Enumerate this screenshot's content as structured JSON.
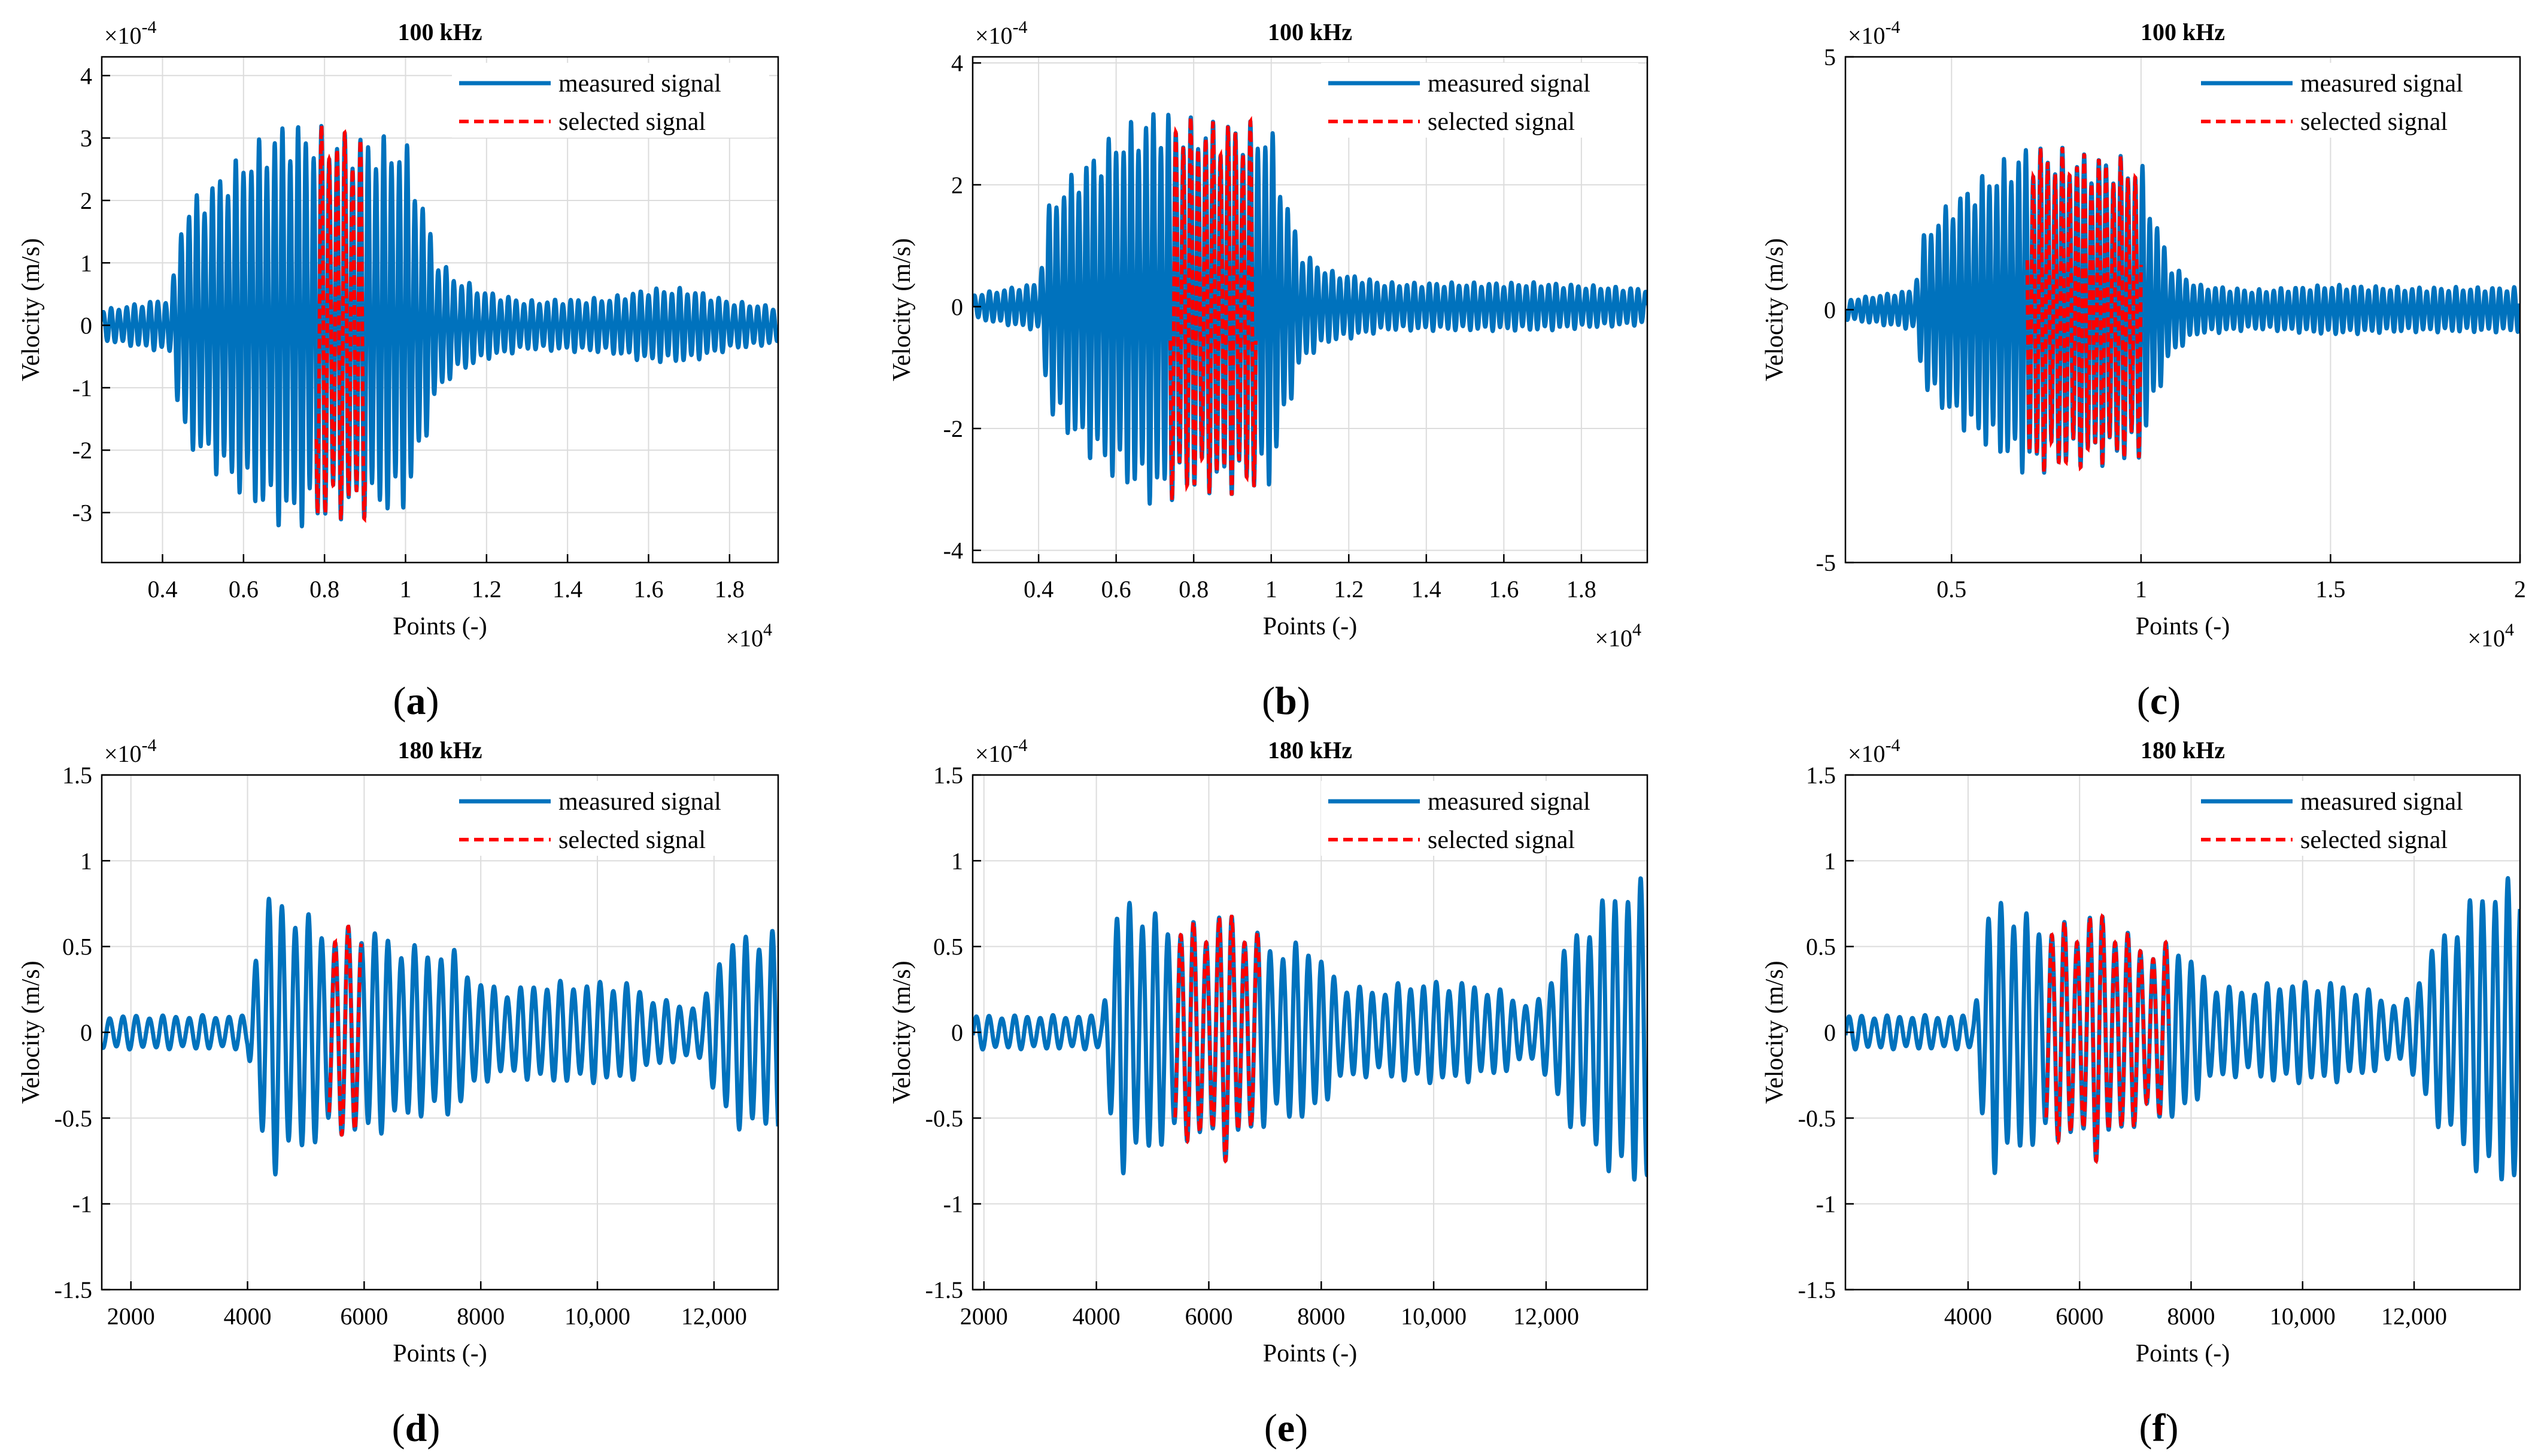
{
  "figure": {
    "legend_measured": "measured signal",
    "legend_selected": "selected signal"
  },
  "colors": {
    "measured": "#0072BD",
    "selected": "#FF0000",
    "grid": "#dcdcdc",
    "axis": "#000000"
  },
  "chart_data": [
    {
      "id": "a",
      "type": "line",
      "panel_label": "(a)",
      "title": "100 kHz",
      "xlabel": "Points (-)",
      "ylabel": "Velocity (m/s)",
      "x_exponent": "×10^4",
      "y_exponent": "×10^-4",
      "xlim": [
        0.25,
        1.92
      ],
      "ylim": [
        -3.8,
        4.3
      ],
      "xticks": [
        0.4,
        0.6,
        0.8,
        1.0,
        1.2,
        1.4,
        1.6,
        1.8
      ],
      "xticklabels": [
        "0.4",
        "0.6",
        "0.8",
        "1",
        "1.2",
        "1.4",
        "1.6",
        "1.8"
      ],
      "yticks": [
        -3,
        -2,
        -1,
        0,
        1,
        2,
        3,
        4
      ],
      "yticklabels": [
        "-3",
        "-2",
        "-1",
        "0",
        "1",
        "2",
        "3",
        "4"
      ],
      "grid": true,
      "legend": "top-right",
      "series": [
        {
          "name": "measured signal",
          "kind": "oscillation",
          "cycles_per_unit": 52,
          "envelope": [
            [
              0.25,
              0.25
            ],
            [
              0.42,
              0.45
            ],
            [
              0.45,
              1.9
            ],
            [
              0.5,
              2.2
            ],
            [
              0.6,
              2.8
            ],
            [
              0.7,
              3.3
            ],
            [
              0.8,
              3.2
            ],
            [
              0.9,
              3.1
            ],
            [
              1.0,
              3.0
            ],
            [
              1.03,
              2.3
            ],
            [
              1.08,
              1.1
            ],
            [
              1.12,
              0.8
            ],
            [
              1.2,
              0.55
            ],
            [
              1.3,
              0.4
            ],
            [
              1.5,
              0.45
            ],
            [
              1.6,
              0.6
            ],
            [
              1.7,
              0.6
            ],
            [
              1.8,
              0.4
            ],
            [
              1.92,
              0.3
            ]
          ]
        },
        {
          "name": "selected signal",
          "kind": "oscillation",
          "cycles_per_unit": 52,
          "range": [
            0.78,
            0.9
          ],
          "envelope": [
            [
              0.78,
              3.1
            ],
            [
              0.9,
              3.0
            ]
          ]
        }
      ]
    },
    {
      "id": "b",
      "type": "line",
      "panel_label": "(b)",
      "title": "100 kHz",
      "xlabel": "Points (-)",
      "ylabel": "Velocity (m/s)",
      "x_exponent": "×10^4",
      "y_exponent": "×10^-4",
      "xlim": [
        0.23,
        1.97
      ],
      "ylim": [
        -4.2,
        4.1
      ],
      "xticks": [
        0.4,
        0.6,
        0.8,
        1.0,
        1.2,
        1.4,
        1.6,
        1.8
      ],
      "xticklabels": [
        "0.4",
        "0.6",
        "0.8",
        "1",
        "1.2",
        "1.4",
        "1.6",
        "1.8"
      ],
      "yticks": [
        -4,
        -2,
        0,
        2,
        4
      ],
      "yticklabels": [
        "-4",
        "-2",
        "0",
        "2",
        "4"
      ],
      "grid": true,
      "legend": "top-right",
      "series": [
        {
          "name": "measured signal",
          "kind": "oscillation",
          "cycles_per_unit": 52,
          "envelope": [
            [
              0.23,
              0.2
            ],
            [
              0.4,
              0.4
            ],
            [
              0.43,
              1.8
            ],
            [
              0.5,
              2.3
            ],
            [
              0.6,
              2.9
            ],
            [
              0.7,
              3.3
            ],
            [
              0.8,
              3.1
            ],
            [
              0.9,
              3.1
            ],
            [
              1.0,
              3.0
            ],
            [
              1.03,
              2.0
            ],
            [
              1.08,
              0.9
            ],
            [
              1.15,
              0.6
            ],
            [
              1.3,
              0.4
            ],
            [
              1.5,
              0.4
            ],
            [
              1.7,
              0.4
            ],
            [
              1.97,
              0.3
            ]
          ]
        },
        {
          "name": "selected signal",
          "kind": "oscillation",
          "cycles_per_unit": 52,
          "range": [
            0.74,
            0.96
          ],
          "envelope": [
            [
              0.74,
              3.1
            ],
            [
              0.96,
              3.0
            ]
          ]
        }
      ]
    },
    {
      "id": "c",
      "type": "line",
      "panel_label": "(c)",
      "title": "100 kHz",
      "xlabel": "Points (-)",
      "ylabel": "Velocity (m/s)",
      "x_exponent": "×10^4",
      "y_exponent": "×10^-4",
      "xlim": [
        0.22,
        2.0
      ],
      "ylim": [
        -5,
        5
      ],
      "xticks": [
        0.5,
        1.0,
        1.5,
        2.0
      ],
      "xticklabels": [
        "0.5",
        "1",
        "1.5",
        "2"
      ],
      "yticks": [
        -5,
        0,
        5
      ],
      "yticklabels": [
        "-5",
        "0",
        "5"
      ],
      "grid": true,
      "legend": "top-right",
      "series": [
        {
          "name": "measured signal",
          "kind": "oscillation",
          "cycles_per_unit": 52,
          "envelope": [
            [
              0.22,
              0.2
            ],
            [
              0.4,
              0.4
            ],
            [
              0.43,
              1.6
            ],
            [
              0.5,
              2.2
            ],
            [
              0.6,
              2.8
            ],
            [
              0.7,
              3.3
            ],
            [
              0.8,
              3.2
            ],
            [
              0.9,
              3.1
            ],
            [
              1.0,
              3.0
            ],
            [
              1.03,
              2.0
            ],
            [
              1.08,
              0.9
            ],
            [
              1.15,
              0.5
            ],
            [
              1.3,
              0.4
            ],
            [
              1.5,
              0.5
            ],
            [
              1.7,
              0.45
            ],
            [
              1.9,
              0.45
            ],
            [
              2.0,
              0.45
            ]
          ]
        },
        {
          "name": "selected signal",
          "kind": "oscillation",
          "cycles_per_unit": 52,
          "range": [
            0.7,
            1.0
          ],
          "envelope": [
            [
              0.7,
              3.2
            ],
            [
              1.0,
              3.0
            ]
          ]
        }
      ]
    },
    {
      "id": "d",
      "type": "line",
      "panel_label": "(d)",
      "title": "180 kHz",
      "xlabel": "Points (-)",
      "ylabel": "Velocity (m/s)",
      "x_exponent": "",
      "y_exponent": "×10^-4",
      "xlim": [
        1500,
        13100
      ],
      "ylim": [
        -1.5,
        1.5
      ],
      "xticks": [
        2000,
        4000,
        6000,
        8000,
        10000,
        12000
      ],
      "xticklabels": [
        "2000",
        "4000",
        "6000",
        "8000",
        "10,000",
        "12,000"
      ],
      "yticks": [
        -1.5,
        -1.0,
        -0.5,
        0,
        0.5,
        1.0,
        1.5
      ],
      "yticklabels": [
        "-1.5",
        "-1",
        "-0.5",
        "0",
        "0.5",
        "1",
        "1.5"
      ],
      "grid": true,
      "legend": "top-right",
      "series": [
        {
          "name": "measured signal",
          "kind": "oscillation",
          "cycles_per_unit": 0.0044,
          "envelope": [
            [
              1500,
              0.1
            ],
            [
              4000,
              0.1
            ],
            [
              4150,
              0.55
            ],
            [
              4400,
              0.85
            ],
            [
              4600,
              0.8
            ],
            [
              5000,
              0.7
            ],
            [
              5500,
              0.6
            ],
            [
              6000,
              0.65
            ],
            [
              6500,
              0.55
            ],
            [
              7000,
              0.5
            ],
            [
              7500,
              0.5
            ],
            [
              8000,
              0.3
            ],
            [
              8500,
              0.25
            ],
            [
              9000,
              0.3
            ],
            [
              9500,
              0.3
            ],
            [
              10000,
              0.3
            ],
            [
              10500,
              0.3
            ],
            [
              11000,
              0.2
            ],
            [
              11800,
              0.15
            ],
            [
              12100,
              0.5
            ],
            [
              12600,
              0.6
            ],
            [
              13100,
              0.6
            ]
          ]
        },
        {
          "name": "selected signal",
          "kind": "oscillation",
          "cycles_per_unit": 0.0044,
          "range": [
            5400,
            5950
          ],
          "envelope": [
            [
              5400,
              0.7
            ],
            [
              5950,
              0.6
            ]
          ]
        }
      ]
    },
    {
      "id": "e",
      "type": "line",
      "panel_label": "(e)",
      "title": "180 kHz",
      "xlabel": "Points (-)",
      "ylabel": "Velocity (m/s)",
      "x_exponent": "",
      "y_exponent": "×10^-4",
      "xlim": [
        1800,
        13800
      ],
      "ylim": [
        -1.5,
        1.5
      ],
      "xticks": [
        2000,
        4000,
        6000,
        8000,
        10000,
        12000
      ],
      "xticklabels": [
        "2000",
        "4000",
        "6000",
        "8000",
        "10,000",
        "12,000"
      ],
      "yticks": [
        -1.5,
        -1.0,
        -0.5,
        0,
        0.5,
        1.0,
        1.5
      ],
      "yticklabels": [
        "-1.5",
        "-1",
        "-0.5",
        "0",
        "0.5",
        "1",
        "1.5"
      ],
      "grid": true,
      "legend": "top-right",
      "series": [
        {
          "name": "measured signal",
          "kind": "oscillation",
          "cycles_per_unit": 0.0044,
          "envelope": [
            [
              1800,
              0.1
            ],
            [
              4100,
              0.1
            ],
            [
              4250,
              0.55
            ],
            [
              4500,
              0.85
            ],
            [
              5000,
              0.7
            ],
            [
              5500,
              0.65
            ],
            [
              6000,
              0.65
            ],
            [
              6300,
              0.75
            ],
            [
              6800,
              0.6
            ],
            [
              7300,
              0.5
            ],
            [
              7800,
              0.55
            ],
            [
              8300,
              0.3
            ],
            [
              9000,
              0.25
            ],
            [
              9500,
              0.3
            ],
            [
              10500,
              0.3
            ],
            [
              11200,
              0.25
            ],
            [
              11800,
              0.15
            ],
            [
              12300,
              0.5
            ],
            [
              12800,
              0.7
            ],
            [
              13300,
              0.9
            ],
            [
              13800,
              0.9
            ]
          ]
        },
        {
          "name": "selected signal",
          "kind": "oscillation",
          "cycles_per_unit": 0.0044,
          "range": [
            5400,
            6900
          ],
          "envelope": [
            [
              5400,
              0.7
            ],
            [
              6300,
              0.75
            ],
            [
              6900,
              0.6
            ]
          ]
        }
      ]
    },
    {
      "id": "f",
      "type": "line",
      "panel_label": "(f)",
      "title": "180 kHz",
      "xlabel": "Points (-)",
      "ylabel": "Velocity (m/s)",
      "x_exponent": "",
      "y_exponent": "×10^-4",
      "xlim": [
        1800,
        13900
      ],
      "ylim": [
        -1.5,
        1.5
      ],
      "xticks": [
        4000,
        6000,
        8000,
        10000,
        12000
      ],
      "xticklabels": [
        "4000",
        "6000",
        "8000",
        "10,000",
        "12,000"
      ],
      "yticks": [
        -1.5,
        -1.0,
        -0.5,
        0,
        0.5,
        1.0,
        1.5
      ],
      "yticklabels": [
        "-1.5",
        "-1",
        "-0.5",
        "0",
        "0.5",
        "1",
        "1.5"
      ],
      "grid": true,
      "legend": "top-right",
      "series": [
        {
          "name": "measured signal",
          "kind": "oscillation",
          "cycles_per_unit": 0.0044,
          "envelope": [
            [
              1800,
              0.1
            ],
            [
              4100,
              0.1
            ],
            [
              4250,
              0.55
            ],
            [
              4500,
              0.85
            ],
            [
              5000,
              0.7
            ],
            [
              5500,
              0.65
            ],
            [
              6000,
              0.65
            ],
            [
              6300,
              0.75
            ],
            [
              6800,
              0.6
            ],
            [
              7300,
              0.5
            ],
            [
              7800,
              0.55
            ],
            [
              8300,
              0.3
            ],
            [
              9000,
              0.25
            ],
            [
              9500,
              0.3
            ],
            [
              10500,
              0.3
            ],
            [
              11200,
              0.25
            ],
            [
              11800,
              0.15
            ],
            [
              12300,
              0.5
            ],
            [
              12800,
              0.7
            ],
            [
              13300,
              0.9
            ],
            [
              13900,
              0.9
            ]
          ]
        },
        {
          "name": "selected signal",
          "kind": "oscillation",
          "cycles_per_unit": 0.0044,
          "range": [
            5400,
            7600
          ],
          "envelope": [
            [
              5400,
              0.7
            ],
            [
              6300,
              0.75
            ],
            [
              7000,
              0.55
            ],
            [
              7600,
              0.6
            ]
          ]
        }
      ]
    }
  ]
}
